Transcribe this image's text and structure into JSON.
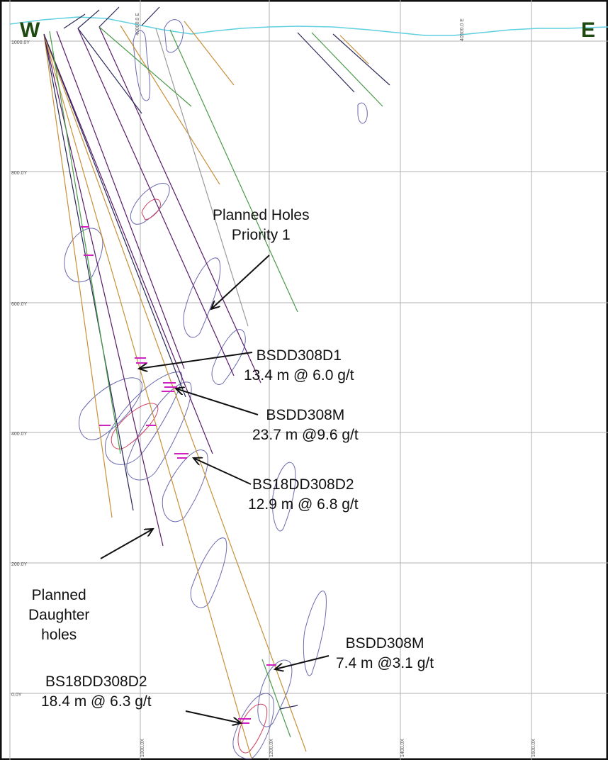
{
  "section": {
    "compass_west": "W",
    "compass_east": "E",
    "easting_labels": [
      "40000.0 E",
      "40500.0 E"
    ],
    "y_axis_labels": [
      "1000.0Y",
      "800.0Y",
      "600.0Y",
      "400.0Y",
      "200.0Y",
      "0.0Y"
    ],
    "x_axis_labels": [
      "1000.0X",
      "1200.0X",
      "1400.0X",
      "1600.0X"
    ]
  },
  "annotations": {
    "planned_holes_p1": {
      "line1": "Planned Holes",
      "line2": "Priority 1"
    },
    "bsdd308d1": {
      "hole": "BSDD308D1",
      "intercept": "13.4 m @ 6.0 g/t"
    },
    "bsdd308m_upper": {
      "hole": "BSDD308M",
      "intercept": "23.7 m @9.6 g/t"
    },
    "bs18dd308d2_upper": {
      "hole": "BS18DD308D2",
      "intercept": "12.9 m @ 6.8 g/t"
    },
    "planned_daughter": {
      "line1": "Planned",
      "line2": "Daughter",
      "line3": "holes"
    },
    "bsdd308m_lower": {
      "hole": "BSDD308M",
      "intercept": "7.4 m @3.1 g/t"
    },
    "bs18dd308d2_lower": {
      "hole": "BS18DD308D2",
      "intercept": "18.4 m @ 6.3 g/t"
    }
  },
  "colors": {
    "grid": "#b0b0b0",
    "topography": "#5fd0e0",
    "drill_hole_purple": "#5a1a6a",
    "drill_hole_orange": "#c8903a",
    "drill_hole_green": "#4a9a4a",
    "drill_hole_navy": "#2a2a5a",
    "ore_outline_blue": "#6a6ab0",
    "ore_outline_red": "#d04060",
    "assay_magenta": "#d020c0",
    "compass_text": "#1e4a12",
    "arrow": "#111111"
  }
}
